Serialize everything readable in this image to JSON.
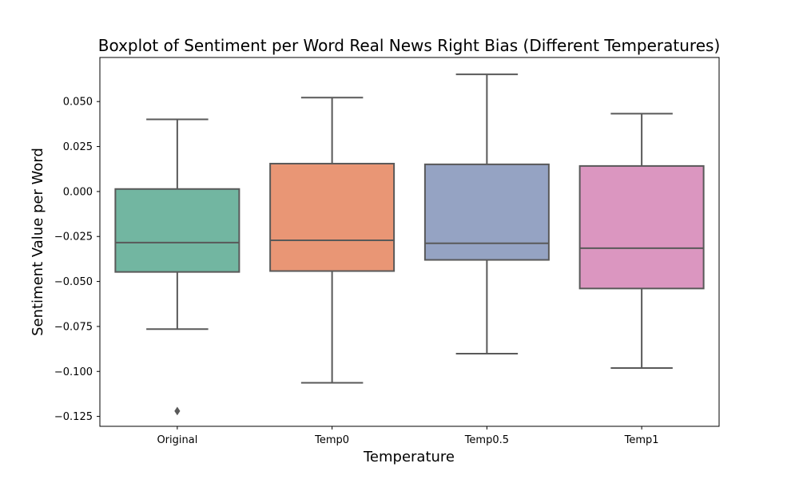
{
  "chart_data": {
    "type": "boxplot",
    "title": "Boxplot of Sentiment per Word Real News Right Bias (Different Temperatures)",
    "xlabel": "Temperature",
    "ylabel": "Sentiment Value per Word",
    "categories": [
      "Original",
      "Temp0",
      "Temp0.5",
      "Temp1"
    ],
    "ylim": [
      -0.1305,
      0.0745
    ],
    "yticks": [
      -0.125,
      -0.1,
      -0.075,
      -0.05,
      -0.025,
      0.0,
      0.025,
      0.05
    ],
    "ytick_labels": [
      "−0.125",
      "−0.100",
      "−0.075",
      "−0.050",
      "−0.025",
      "0.000",
      "0.025",
      "0.050"
    ],
    "grid": false,
    "legend": "none",
    "boxes": [
      {
        "category": "Original",
        "whisker_low": -0.0765,
        "q1": -0.0447,
        "median": -0.0284,
        "q3": 0.0014,
        "whisker_high": 0.0401,
        "outliers": [
          -0.122
        ],
        "color": "#72b6a1"
      },
      {
        "category": "Temp0",
        "whisker_low": -0.1063,
        "q1": -0.0442,
        "median": -0.0271,
        "q3": 0.0155,
        "whisker_high": 0.0522,
        "outliers": [],
        "color": "#e99675"
      },
      {
        "category": "Temp0.5",
        "whisker_low": -0.0901,
        "q1": -0.038,
        "median": -0.0288,
        "q3": 0.0151,
        "whisker_high": 0.0651,
        "outliers": [],
        "color": "#95a3c3"
      },
      {
        "category": "Temp1",
        "whisker_low": -0.0981,
        "q1": -0.0539,
        "median": -0.0315,
        "q3": 0.0142,
        "whisker_high": 0.0433,
        "outliers": [],
        "color": "#db96c0"
      }
    ],
    "line_color": "#595959"
  }
}
